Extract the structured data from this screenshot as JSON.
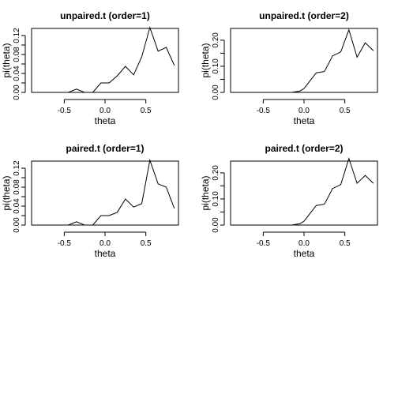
{
  "chart_data": [
    {
      "type": "line",
      "title": "unpaired.t (order=1)",
      "xlabel": "theta",
      "ylabel": "pi(theta)",
      "xticks": [
        -0.5,
        0.0,
        0.5
      ],
      "xtick_labels": [
        "-0.5",
        "0.0",
        "0.5"
      ],
      "yticks": [
        0.0,
        0.02,
        0.04,
        0.06,
        0.08,
        0.1,
        0.12
      ],
      "ytick_labels": [
        "0.00",
        "",
        "0.04",
        "",
        "0.08",
        "",
        "0.12"
      ],
      "xlim": [
        -0.9,
        0.9
      ],
      "ylim": [
        0.0,
        0.135
      ],
      "x": [
        -0.85,
        -0.75,
        -0.65,
        -0.55,
        -0.45,
        -0.35,
        -0.25,
        -0.15,
        -0.05,
        0.05,
        0.15,
        0.25,
        0.35,
        0.45,
        0.55,
        0.65,
        0.75,
        0.85
      ],
      "y": [
        0.0,
        0.0,
        0.0,
        0.0,
        0.0,
        0.007,
        0.0,
        0.0,
        0.02,
        0.02,
        0.035,
        0.055,
        0.037,
        0.075,
        0.137,
        0.087,
        0.095,
        0.057
      ]
    },
    {
      "type": "line",
      "title": "unpaired.t (order=2)",
      "xlabel": "theta",
      "ylabel": "pi(theta)",
      "xticks": [
        -0.5,
        0.0,
        0.5
      ],
      "xtick_labels": [
        "-0.5",
        "0.0",
        "0.5"
      ],
      "yticks": [
        0.0,
        0.05,
        0.1,
        0.15,
        0.2
      ],
      "ytick_labels": [
        "0.00",
        "",
        "0.10",
        "",
        "0.20"
      ],
      "xlim": [
        -0.9,
        0.9
      ],
      "ylim": [
        0.0,
        0.245
      ],
      "x": [
        -0.85,
        -0.75,
        -0.65,
        -0.55,
        -0.45,
        -0.35,
        -0.25,
        -0.15,
        -0.05,
        0.0,
        0.05,
        0.15,
        0.25,
        0.35,
        0.45,
        0.55,
        0.65,
        0.75,
        0.85
      ],
      "y": [
        0.0,
        0.0,
        0.0,
        0.0,
        0.0,
        0.0,
        0.0,
        0.0,
        0.005,
        0.015,
        0.035,
        0.075,
        0.08,
        0.14,
        0.155,
        0.24,
        0.135,
        0.19,
        0.16
      ]
    },
    {
      "type": "line",
      "title": "paired.t (order=1)",
      "xlabel": "theta",
      "ylabel": "pi(theta)",
      "xticks": [
        -0.5,
        0.0,
        0.5
      ],
      "xtick_labels": [
        "-0.5",
        "0.0",
        "0.5"
      ],
      "yticks": [
        0.0,
        0.02,
        0.04,
        0.06,
        0.08,
        0.1,
        0.12
      ],
      "ytick_labels": [
        "0.00",
        "",
        "0.04",
        "",
        "0.08",
        "",
        "0.12"
      ],
      "xlim": [
        -0.9,
        0.9
      ],
      "ylim": [
        0.0,
        0.135
      ],
      "x": [
        -0.85,
        -0.75,
        -0.65,
        -0.55,
        -0.45,
        -0.35,
        -0.25,
        -0.15,
        -0.05,
        0.05,
        0.15,
        0.25,
        0.35,
        0.45,
        0.55,
        0.65,
        0.75,
        0.85
      ],
      "y": [
        0.0,
        0.0,
        0.0,
        0.0,
        0.0,
        0.007,
        0.0,
        0.0,
        0.02,
        0.02,
        0.027,
        0.055,
        0.038,
        0.045,
        0.137,
        0.087,
        0.08,
        0.035
      ]
    },
    {
      "type": "line",
      "title": "paired.t (order=2)",
      "xlabel": "theta",
      "ylabel": "pi(theta)",
      "xticks": [
        -0.5,
        0.0,
        0.5
      ],
      "xtick_labels": [
        "-0.5",
        "0.0",
        "0.5"
      ],
      "yticks": [
        0.0,
        0.05,
        0.1,
        0.15,
        0.2
      ],
      "ytick_labels": [
        "0.00",
        "",
        "0.10",
        "",
        "0.20"
      ],
      "xlim": [
        -0.9,
        0.9
      ],
      "ylim": [
        0.0,
        0.245
      ],
      "x": [
        -0.85,
        -0.75,
        -0.65,
        -0.55,
        -0.45,
        -0.35,
        -0.25,
        -0.15,
        -0.05,
        0.0,
        0.05,
        0.15,
        0.25,
        0.35,
        0.45,
        0.55,
        0.65,
        0.75,
        0.85
      ],
      "y": [
        0.0,
        0.0,
        0.0,
        0.0,
        0.0,
        0.0,
        0.0,
        0.0,
        0.005,
        0.015,
        0.035,
        0.075,
        0.08,
        0.14,
        0.155,
        0.255,
        0.16,
        0.19,
        0.16
      ]
    }
  ]
}
